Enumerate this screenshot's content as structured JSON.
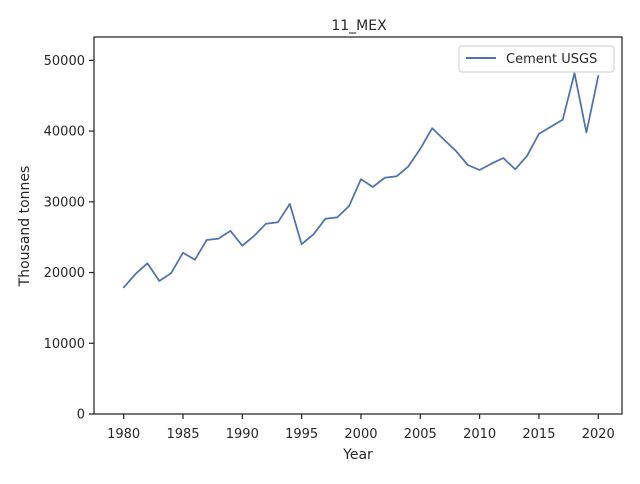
{
  "chart_data": {
    "type": "line",
    "title": "11_MEX",
    "xlabel": "Year",
    "ylabel": "Thousand tonnes",
    "xlim": [
      1977.5,
      2022
    ],
    "ylim": [
      0,
      53300
    ],
    "xticks": [
      1980,
      1985,
      1990,
      1995,
      2000,
      2005,
      2010,
      2015,
      2020
    ],
    "yticks": [
      0,
      10000,
      20000,
      30000,
      40000,
      50000
    ],
    "grid": false,
    "legend_position": "top-right",
    "series": [
      {
        "name": "Cement USGS",
        "color": "#4c72b0",
        "x": [
          1980,
          1981,
          1982,
          1983,
          1984,
          1985,
          1986,
          1987,
          1988,
          1989,
          1990,
          1991,
          1992,
          1993,
          1994,
          1995,
          1996,
          1997,
          1998,
          1999,
          2000,
          2001,
          2002,
          2003,
          2004,
          2005,
          2006,
          2007,
          2008,
          2009,
          2010,
          2011,
          2012,
          2013,
          2014,
          2015,
          2016,
          2017,
          2018,
          2019,
          2020
        ],
        "y": [
          17900,
          19800,
          21300,
          18800,
          19900,
          22800,
          21800,
          24600,
          24800,
          25900,
          23800,
          25200,
          26900,
          27100,
          29700,
          24000,
          25400,
          27600,
          27800,
          29400,
          33200,
          32100,
          33400,
          33600,
          35000,
          37500,
          40400,
          38800,
          37200,
          35200,
          34500,
          35400,
          36200,
          34600,
          36500,
          39600,
          40600,
          41600,
          48200,
          39800,
          47800
        ]
      }
    ]
  }
}
